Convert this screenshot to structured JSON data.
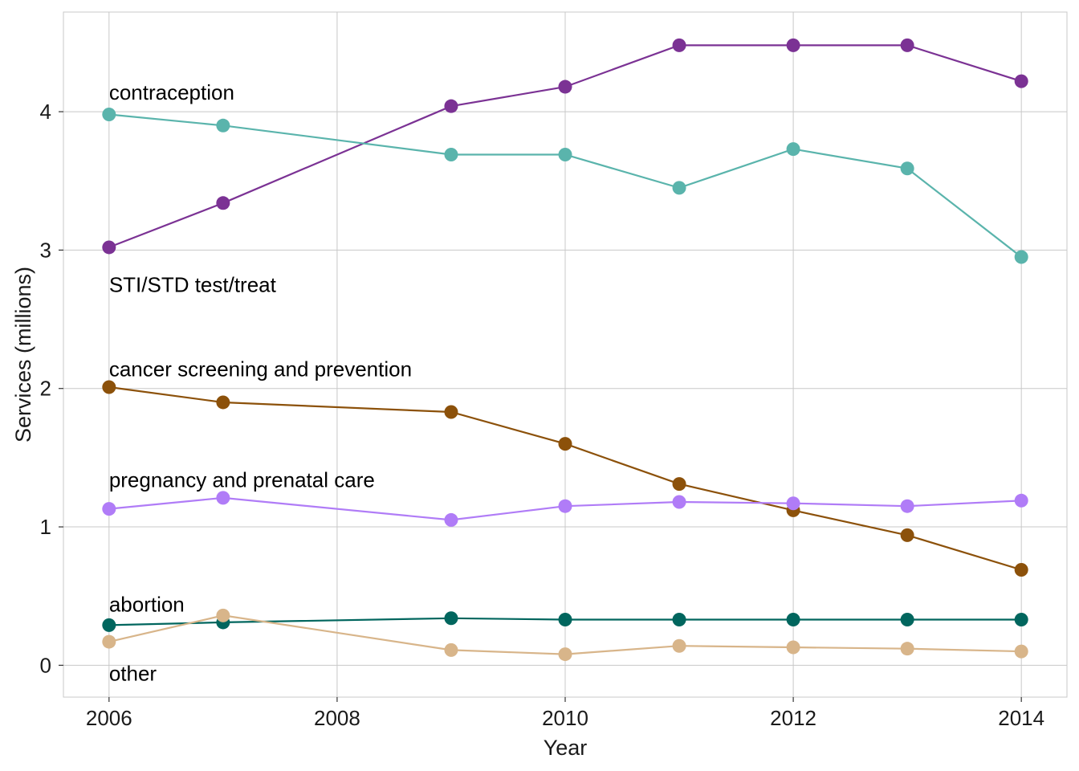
{
  "chart_data": {
    "type": "line",
    "title": "",
    "xlabel": "Year",
    "ylabel": "Services (millions)",
    "xlim": [
      2005.6,
      2014.4
    ],
    "ylim": [
      -0.23,
      4.72
    ],
    "grid": true,
    "x_ticks": [
      2006,
      2008,
      2010,
      2012,
      2014
    ],
    "x_tick_labels": [
      "2006",
      "2008",
      "2010",
      "2012",
      "2014"
    ],
    "y_ticks": [
      0,
      1,
      2,
      3,
      4
    ],
    "y_tick_labels": [
      "0",
      "1",
      "2",
      "3",
      "4"
    ],
    "series": [
      {
        "name": "contraception",
        "color": "#7b3294",
        "x": [
          2006,
          2007,
          2009,
          2010,
          2011,
          2012,
          2013,
          2014
        ],
        "values": [
          3.02,
          3.34,
          4.04,
          4.18,
          4.48,
          4.48,
          4.48,
          4.22
        ]
      },
      {
        "name": "STI/STD test/treat",
        "color": "#5ab4ac",
        "x": [
          2006,
          2007,
          2009,
          2010,
          2011,
          2012,
          2013,
          2014
        ],
        "values": [
          3.98,
          3.9,
          3.69,
          3.69,
          3.45,
          3.73,
          3.59,
          2.95
        ]
      },
      {
        "name": "cancer screening and prevention",
        "color": "#8c510a",
        "x": [
          2006,
          2007,
          2009,
          2010,
          2011,
          2012,
          2013,
          2014
        ],
        "values": [
          2.01,
          1.9,
          1.83,
          1.6,
          1.31,
          1.12,
          0.94,
          0.69
        ]
      },
      {
        "name": "pregnancy and prenatal care",
        "color": "#b07cf7",
        "x": [
          2006,
          2007,
          2009,
          2010,
          2011,
          2012,
          2013,
          2014
        ],
        "values": [
          1.13,
          1.21,
          1.05,
          1.15,
          1.18,
          1.17,
          1.15,
          1.19
        ]
      },
      {
        "name": "abortion",
        "color": "#01665e",
        "x": [
          2006,
          2007,
          2009,
          2010,
          2011,
          2012,
          2013,
          2014
        ],
        "values": [
          0.29,
          0.31,
          0.34,
          0.33,
          0.33,
          0.33,
          0.33,
          0.33
        ]
      },
      {
        "name": "other",
        "color": "#d8b58a",
        "x": [
          2006,
          2007,
          2009,
          2010,
          2011,
          2012,
          2013,
          2014
        ],
        "values": [
          0.17,
          0.36,
          0.11,
          0.08,
          0.14,
          0.13,
          0.12,
          0.1
        ]
      }
    ],
    "annotations": [
      {
        "text": "contraception",
        "series": "contraception"
      },
      {
        "text": "STI/STD test/treat",
        "series": "STI/STD test/treat"
      },
      {
        "text": "cancer screening and prevention",
        "series": "cancer screening and prevention"
      },
      {
        "text": "pregnancy and prenatal care",
        "series": "pregnancy and prenatal care"
      },
      {
        "text": "abortion",
        "series": "abortion"
      },
      {
        "text": "other",
        "series": "other"
      }
    ]
  }
}
